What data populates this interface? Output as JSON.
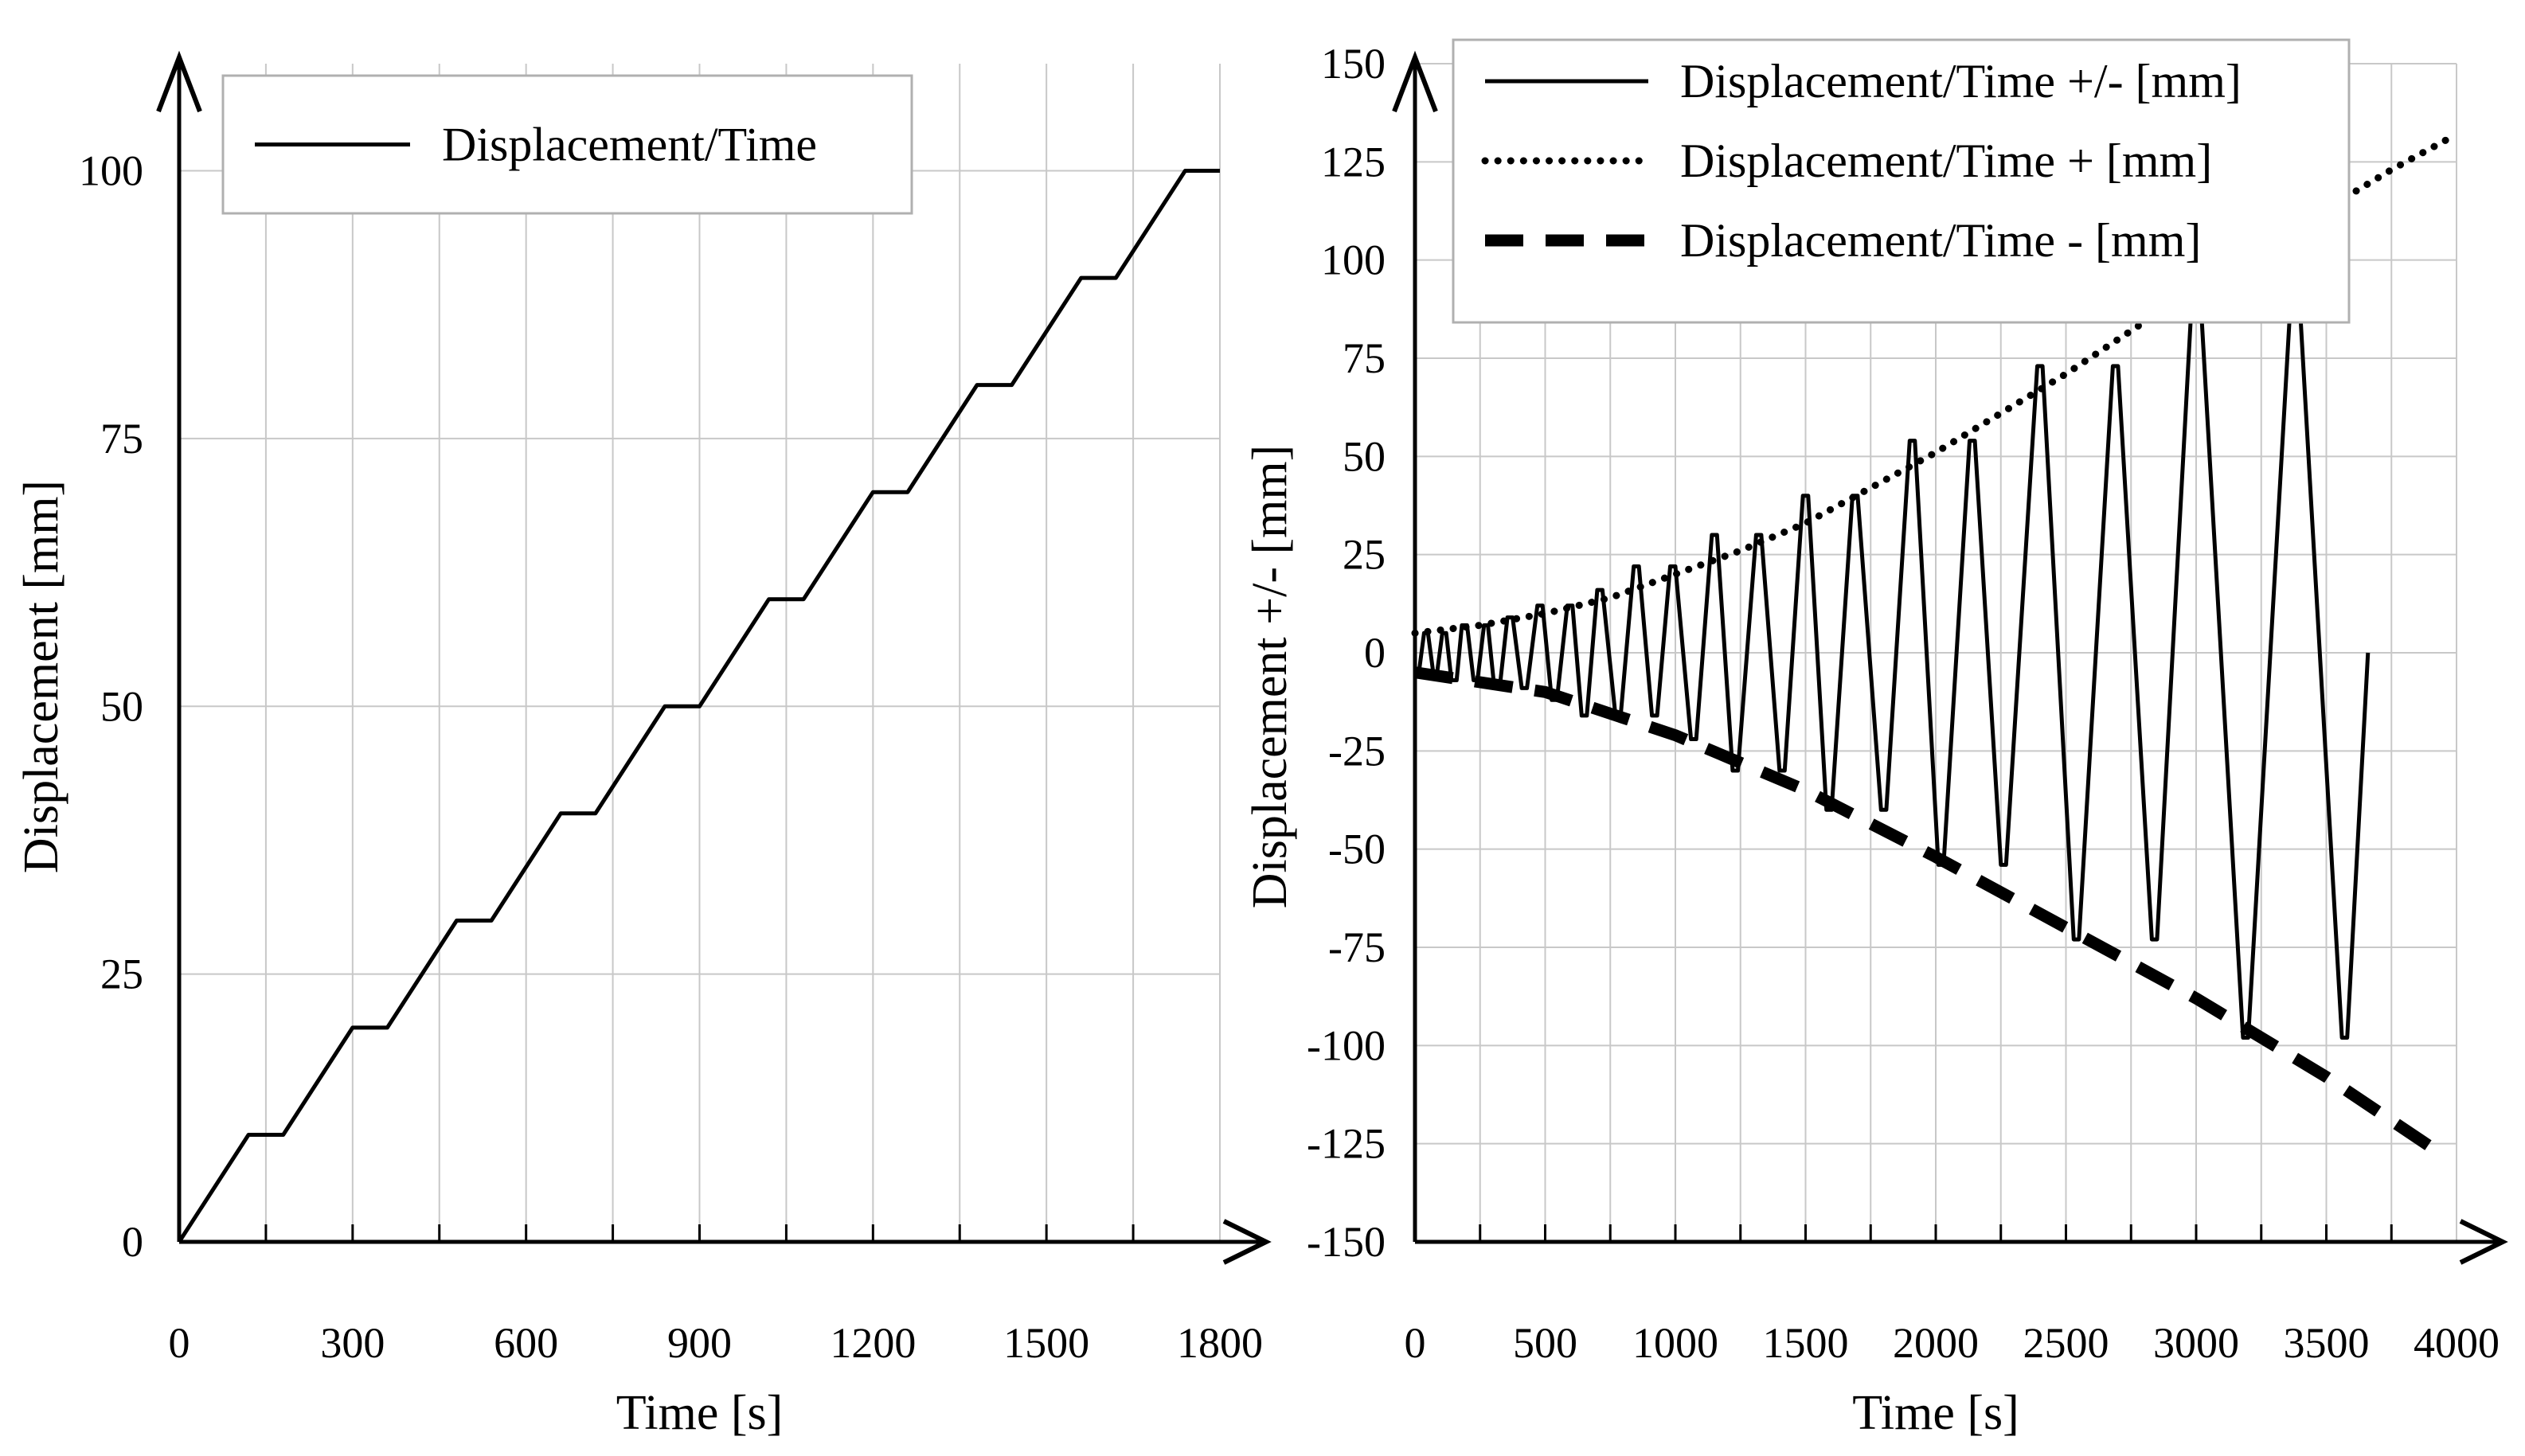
{
  "chart_data": [
    {
      "type": "line",
      "xlabel": "Time [s]",
      "ylabel": "Displacement [mm]",
      "xlim": [
        0,
        1800
      ],
      "ylim": [
        0,
        110
      ],
      "x_ticks": [
        0,
        300,
        600,
        900,
        1200,
        1500,
        1800
      ],
      "y_ticks": [
        0,
        25,
        50,
        75,
        100
      ],
      "grid": true,
      "legend_placement": "top-left",
      "series": [
        {
          "name": "Displacement/Time",
          "style": "solid",
          "x": [
            0,
            120,
            180,
            300,
            360,
            480,
            540,
            660,
            720,
            840,
            900,
            1020,
            1080,
            1200,
            1260,
            1380,
            1440,
            1560,
            1620,
            1740,
            1800
          ],
          "y": [
            0,
            10,
            10,
            20,
            20,
            30,
            30,
            40,
            40,
            50,
            50,
            60,
            60,
            70,
            70,
            80,
            80,
            90,
            90,
            100,
            100
          ]
        }
      ]
    },
    {
      "type": "line",
      "xlabel": "Time [s]",
      "ylabel": "Displacement +/- [mm]",
      "xlim": [
        0,
        4000
      ],
      "ylim": [
        -150,
        150
      ],
      "x_ticks": [
        0,
        500,
        1000,
        1500,
        2000,
        2500,
        3000,
        3500,
        4000
      ],
      "y_ticks": [
        -150,
        -125,
        -100,
        -75,
        -50,
        -25,
        0,
        25,
        50,
        75,
        100,
        125,
        150
      ],
      "grid": true,
      "legend_placement": "top",
      "series": [
        {
          "name": "Displacement/Time +/- [mm]",
          "style": "solid",
          "x": [
            0,
            15,
            35,
            50,
            70,
            85,
            105,
            120,
            140,
            160,
            180,
            200,
            225,
            240,
            265,
            280,
            305,
            325,
            355,
            375,
            410,
            430,
            470,
            490,
            525,
            545,
            585,
            605,
            640,
            660,
            700,
            720,
            770,
            790,
            840,
            860,
            910,
            930,
            980,
            1000,
            1060,
            1080,
            1140,
            1160,
            1220,
            1240,
            1310,
            1330,
            1400,
            1420,
            1490,
            1510,
            1580,
            1600,
            1680,
            1700,
            1790,
            1810,
            1900,
            1920,
            2010,
            2030,
            2130,
            2150,
            2250,
            2270,
            2390,
            2410,
            2530,
            2550,
            2680,
            2700,
            2830,
            2850,
            2990,
            3010,
            3180,
            3200,
            3370,
            3390,
            3560,
            3580,
            3660
          ],
          "y": [
            -5,
            -5,
            5,
            5,
            -5,
            -5,
            5,
            5,
            -7,
            -7,
            7,
            7,
            -7,
            -7,
            7,
            7,
            -9,
            -9,
            9,
            9,
            -9,
            -9,
            12,
            12,
            -12,
            -12,
            12,
            12,
            -16,
            -16,
            16,
            16,
            -16,
            -16,
            22,
            22,
            -16,
            -16,
            22,
            22,
            -22,
            -22,
            30,
            30,
            -30,
            -30,
            30,
            30,
            -30,
            -30,
            40,
            40,
            -40,
            -40,
            40,
            40,
            -40,
            -40,
            54,
            54,
            -54,
            -54,
            54,
            54,
            -54,
            -54,
            73,
            73,
            -73,
            -73,
            73,
            73,
            -73,
            -73,
            98,
            98,
            -98,
            -98,
            98,
            98,
            -98,
            -98,
            0
          ]
        },
        {
          "name": "Displacement/Time + [mm]",
          "style": "dotted",
          "x": [
            0,
            250,
            500,
            750,
            1000,
            1250,
            1500,
            1750,
            2000,
            2250,
            2500,
            2750,
            3000,
            3250,
            3500,
            3750,
            4000
          ],
          "y": [
            5,
            7,
            10,
            14,
            20,
            26,
            33,
            42,
            51,
            61,
            71,
            82,
            93,
            103,
            113,
            123,
            132
          ]
        },
        {
          "name": "Displacement/Time - [mm]",
          "style": "dashed",
          "x": [
            0,
            500,
            1000,
            1500,
            2000,
            2500,
            3000,
            3500,
            3950
          ],
          "y": [
            -5,
            -10,
            -21,
            -35,
            -52,
            -70,
            -88,
            -108,
            -128
          ]
        }
      ]
    }
  ]
}
